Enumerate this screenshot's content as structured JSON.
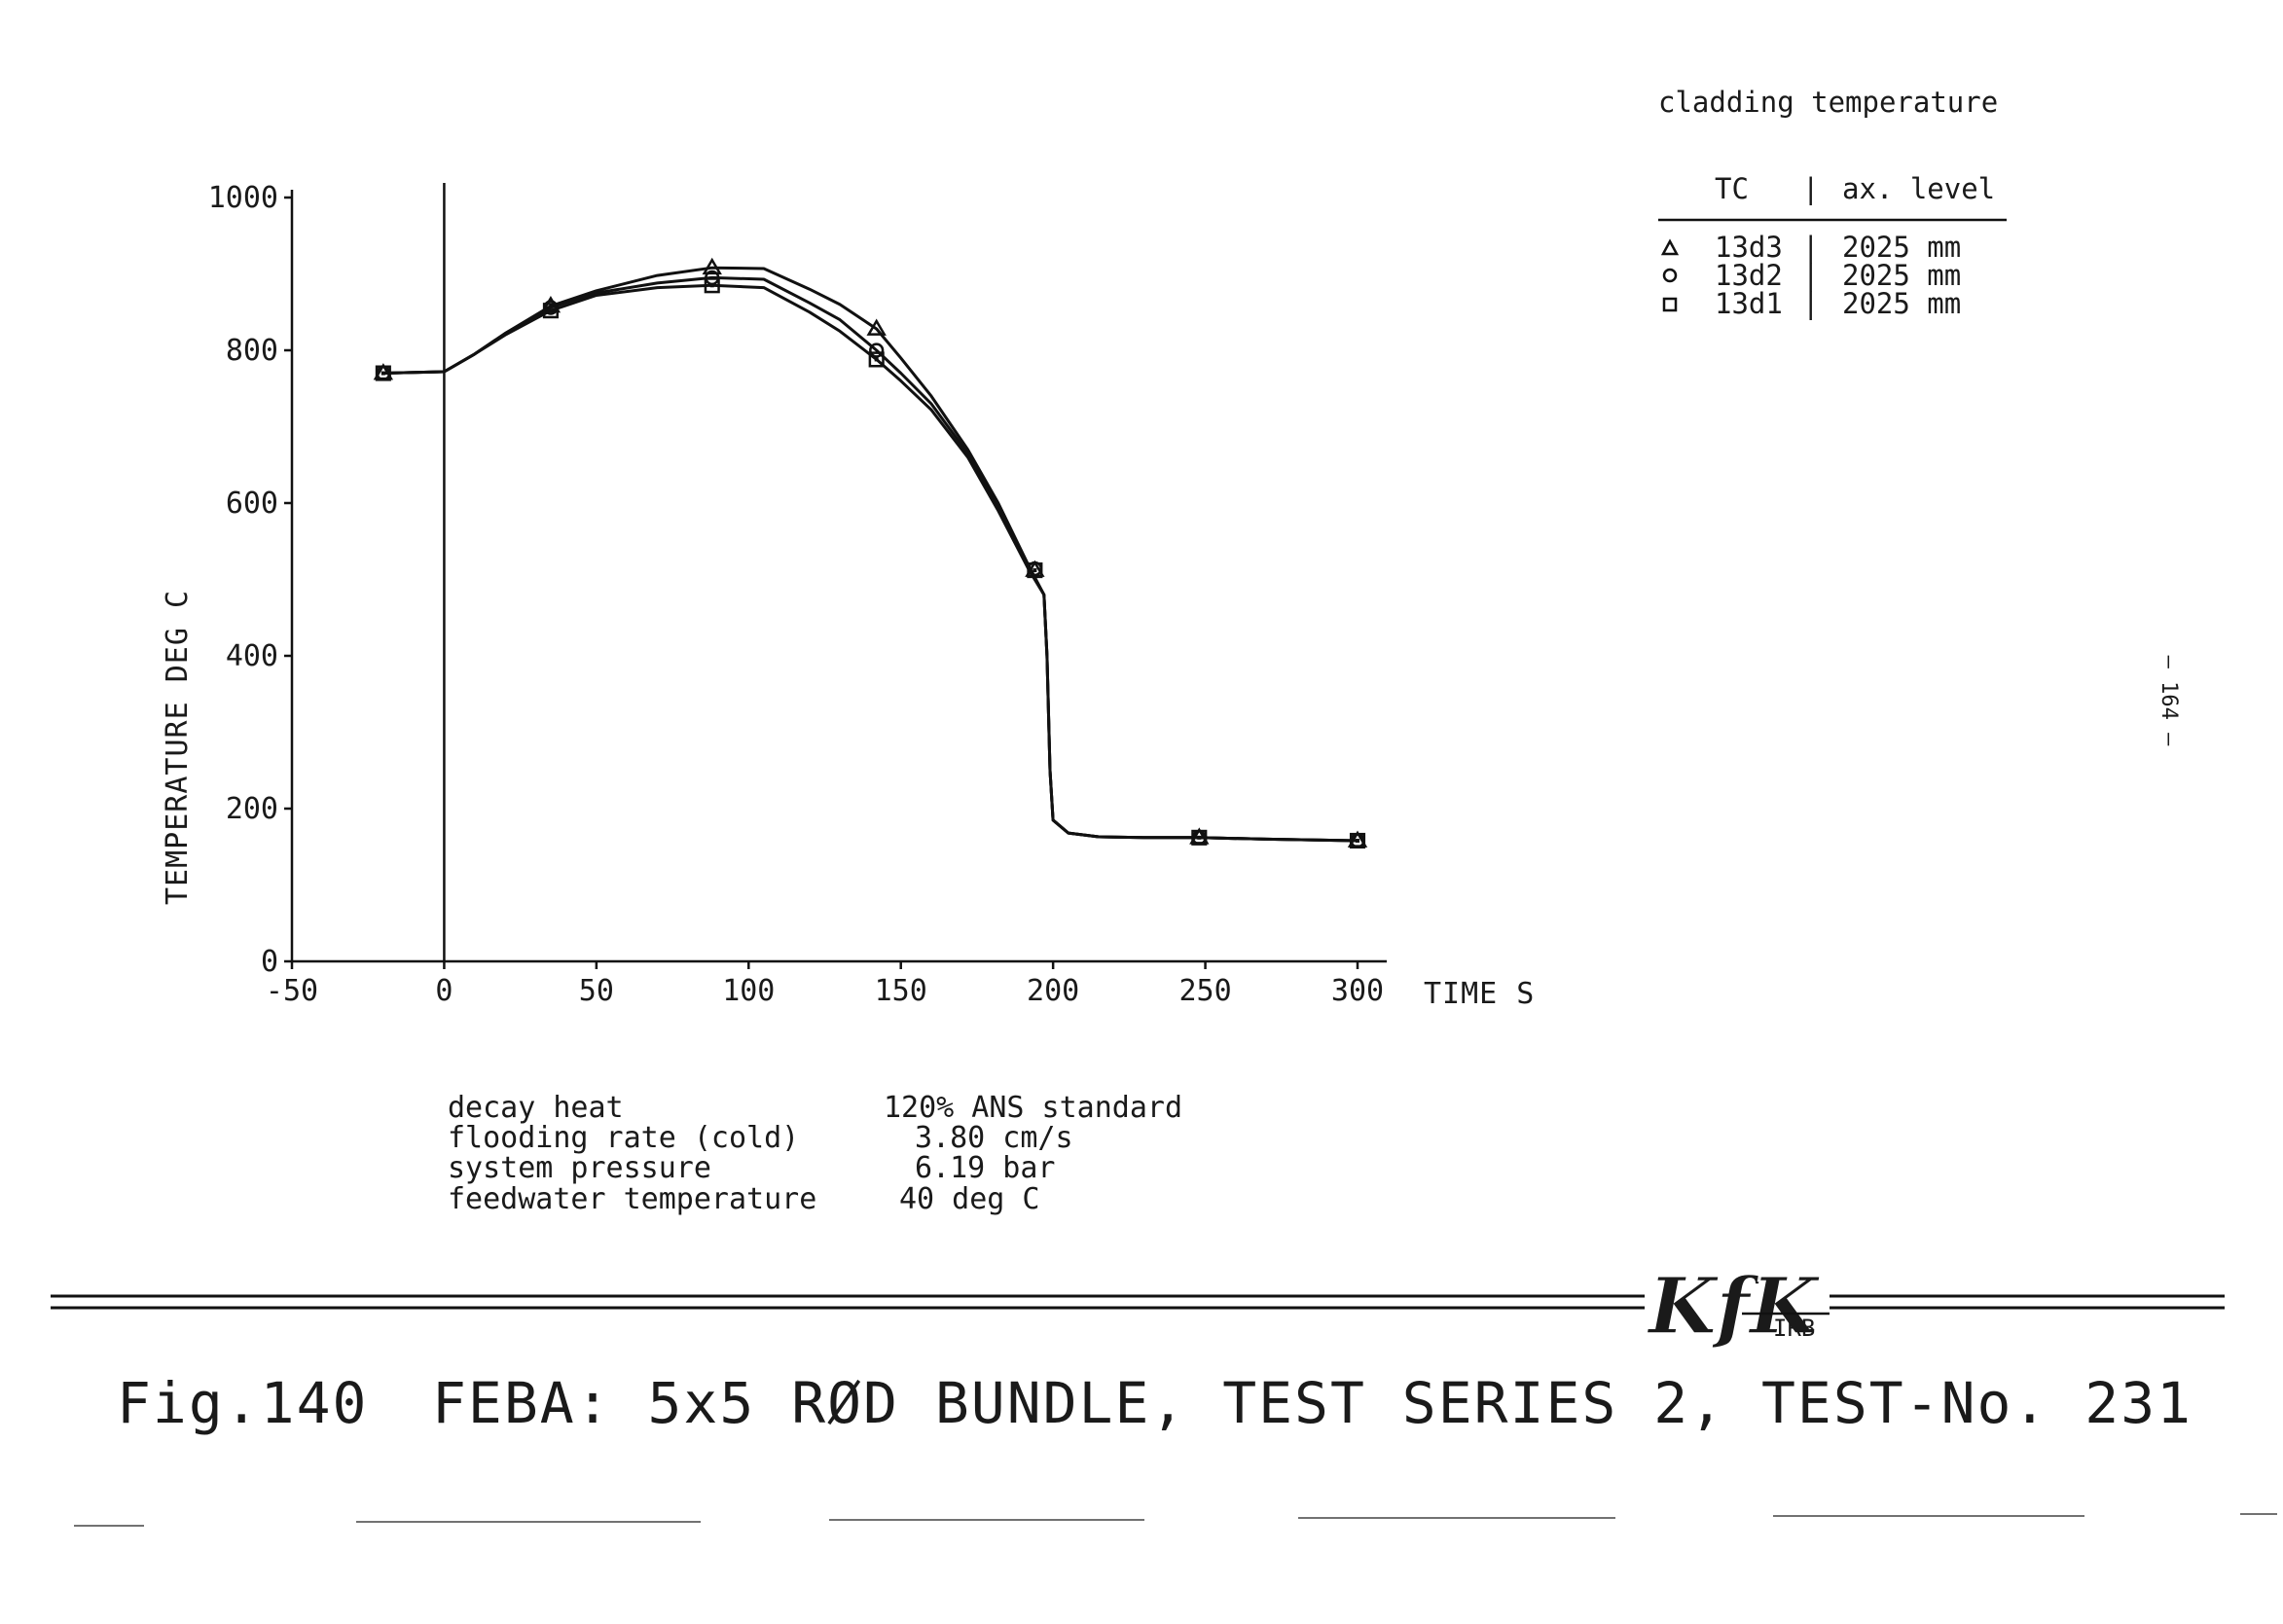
{
  "legend_title": "cladding temperature",
  "legend_header": {
    "tc": "TC",
    "sep": "|",
    "level": "ax. level"
  },
  "legend_items": [
    {
      "marker": "triangle",
      "tc": "13d3",
      "sep": "|",
      "level": "2025 mm"
    },
    {
      "marker": "circle",
      "tc": "13d2",
      "sep": "|",
      "level": "2025 mm"
    },
    {
      "marker": "square",
      "tc": "13d1",
      "sep": "|",
      "level": "2025 mm"
    }
  ],
  "conditions": [
    {
      "label": "decay heat",
      "value": "120% ANS standard"
    },
    {
      "label": "flooding rate (cold)",
      "value": "3.80 cm/s"
    },
    {
      "label": "system pressure",
      "value": "6.19 bar"
    },
    {
      "label": "feedwater temperature",
      "value": "40 deg C"
    }
  ],
  "caption": {
    "fig": "Fig.140",
    "title": "FEBA: 5x5 RØD BUNDLE, TEST SERIES 2, TEST-No. 231"
  },
  "side_label": "— 164 —",
  "logo": {
    "main": "KfK",
    "sub": "IRB"
  },
  "chart_data": {
    "type": "line",
    "title": "",
    "xlabel": "TIME S",
    "ylabel": "TEMPERATURE DEG C",
    "xlim": [
      -50,
      300
    ],
    "ylim": [
      0,
      1000
    ],
    "xticks": [
      -50,
      0,
      50,
      100,
      150,
      200,
      250,
      300
    ],
    "yticks": [
      0,
      200,
      400,
      600,
      800,
      1000
    ],
    "vline_x": 0,
    "grid": false,
    "legend_position": "top-right",
    "series": [
      {
        "name": "13d3",
        "marker": "triangle",
        "x": [
          -20,
          0,
          10,
          20,
          35,
          50,
          70,
          88,
          105,
          120,
          130,
          142,
          150,
          160,
          172,
          182,
          192,
          197,
          198,
          199,
          200,
          205,
          215,
          230,
          248,
          270,
          300
        ],
        "y": [
          770,
          772,
          795,
          822,
          858,
          878,
          898,
          908,
          907,
          880,
          860,
          828,
          790,
          740,
          670,
          600,
          518,
          480,
          400,
          250,
          185,
          168,
          163,
          162,
          162,
          160,
          158
        ],
        "markers_x": [
          -20,
          35,
          88,
          142,
          194,
          248,
          300
        ],
        "markers_y": [
          770,
          858,
          908,
          828,
          512,
          162,
          158
        ]
      },
      {
        "name": "13d2",
        "marker": "circle",
        "x": [
          -20,
          0,
          10,
          20,
          35,
          50,
          70,
          88,
          105,
          120,
          130,
          142,
          150,
          160,
          172,
          182,
          192,
          197,
          198,
          199,
          200,
          205,
          215,
          230,
          248,
          270,
          300
        ],
        "y": [
          770,
          772,
          795,
          822,
          856,
          875,
          888,
          895,
          893,
          862,
          840,
          800,
          770,
          730,
          665,
          595,
          516,
          480,
          400,
          250,
          185,
          168,
          163,
          162,
          162,
          160,
          158
        ],
        "markers_x": [
          -20,
          35,
          88,
          142,
          194,
          248,
          300
        ],
        "markers_y": [
          770,
          856,
          895,
          800,
          514,
          162,
          158
        ]
      },
      {
        "name": "13d1",
        "marker": "square",
        "x": [
          -20,
          0,
          10,
          20,
          35,
          50,
          70,
          88,
          105,
          120,
          130,
          142,
          150,
          160,
          172,
          182,
          192,
          197,
          198,
          199,
          200,
          205,
          215,
          230,
          248,
          270,
          300
        ],
        "y": [
          770,
          772,
          795,
          820,
          852,
          872,
          882,
          885,
          882,
          850,
          825,
          788,
          760,
          722,
          660,
          590,
          513,
          480,
          400,
          250,
          185,
          168,
          163,
          162,
          162,
          160,
          158
        ],
        "markers_x": [
          -20,
          35,
          88,
          142,
          194,
          248,
          300
        ],
        "markers_y": [
          770,
          852,
          885,
          788,
          512,
          162,
          158
        ]
      }
    ]
  }
}
